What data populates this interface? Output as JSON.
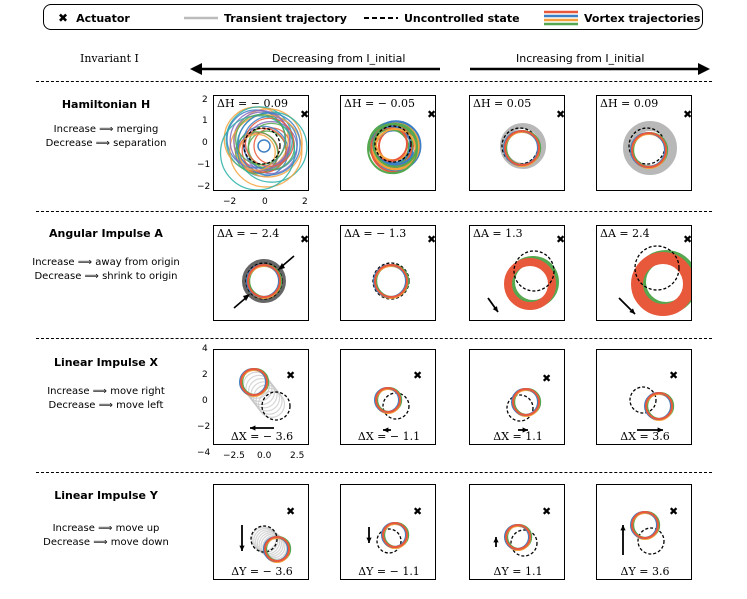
{
  "legend": {
    "actuator_label": "Actuator",
    "transient_label": "Transient trajectory",
    "uncontrolled_label": "Uncontrolled state",
    "vortex_label": "Vortex trajectories",
    "vortex_colors": [
      "#e8593c",
      "#3b7fc4",
      "#f5a23c",
      "#55a84f"
    ],
    "transient_color": "#bbbbbb"
  },
  "header": {
    "invariant_label": "Invariant I",
    "decreasing_label": "Decreasing from I_initial",
    "increasing_label": "Increasing from I_initial"
  },
  "rows": [
    {
      "title": "Hamiltonian H",
      "line1": "Increase ⟹ merging",
      "line2": "Decrease ⟹ separation",
      "panels": [
        {
          "label": "ΔH = − 0.09"
        },
        {
          "label": "ΔH = − 0.05"
        },
        {
          "label": "ΔH = 0.05"
        },
        {
          "label": "ΔH = 0.09"
        }
      ],
      "y_ticks": [
        "2",
        "1",
        "0",
        "−1",
        "−2"
      ],
      "x_ticks": [
        "−2",
        "0",
        "2"
      ]
    },
    {
      "title": "Angular Impulse A",
      "line1": "Increase ⟹ away from origin",
      "line2": "Decrease ⟹ shrink to origin",
      "panels": [
        {
          "label": "ΔA = − 2.4"
        },
        {
          "label": "ΔA = − 1.3"
        },
        {
          "label": "ΔA = 1.3"
        },
        {
          "label": "ΔA = 2.4"
        }
      ]
    },
    {
      "title": "Linear Impulse X",
      "line1": "Increase ⟹ move right",
      "line2": "Decrease ⟹ move left",
      "panels": [
        {
          "label": "ΔX = − 3.6"
        },
        {
          "label": "ΔX = − 1.1"
        },
        {
          "label": "ΔX = 1.1"
        },
        {
          "label": "ΔX = 3.6"
        }
      ],
      "y_ticks": [
        "4",
        "2",
        "0",
        "−2",
        "−4"
      ],
      "x_ticks": [
        "−2.5",
        "0.0",
        "2.5"
      ]
    },
    {
      "title": "Linear Impulse Y",
      "line1": "Increase ⟹ move up",
      "line2": "Decrease ⟹ move down",
      "panels": [
        {
          "label": "ΔY = − 3.6"
        },
        {
          "label": "ΔY = − 1.1"
        },
        {
          "label": "ΔY = 1.1"
        },
        {
          "label": "ΔY = 3.6"
        }
      ]
    }
  ]
}
